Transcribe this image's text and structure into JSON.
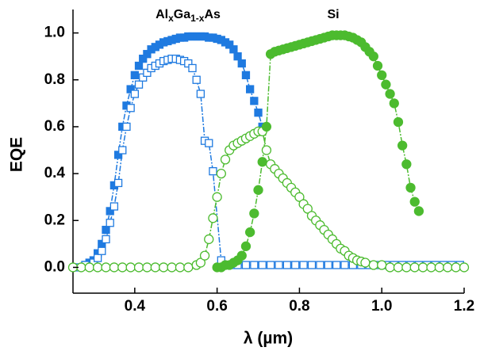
{
  "chart_data": {
    "type": "scatter",
    "xlabel": "λ (µm)",
    "ylabel": "EQE",
    "annotations": [
      {
        "parts": [
          "Al",
          "x",
          "Ga",
          "1-x",
          "As"
        ]
      },
      {
        "text": "Si"
      }
    ],
    "xlim": [
      0.25,
      1.2
    ],
    "ylim": [
      -0.11,
      1.1
    ],
    "xticks": [
      0.4,
      0.6,
      0.8,
      {
        "value": 1,
        "label": "1.0"
      },
      1.2
    ],
    "yticks": [
      {
        "value": 0,
        "label": "0.0"
      },
      0.2,
      0.4,
      0.6,
      0.8,
      {
        "value": 1,
        "label": "1.0"
      }
    ],
    "series": [
      {
        "color": "#1f7ae0",
        "marker": "square",
        "filled": true,
        "x": [
          0.28,
          0.29,
          0.3,
          0.31,
          0.32,
          0.33,
          0.34,
          0.35,
          0.36,
          0.37,
          0.38,
          0.39,
          0.4,
          0.41,
          0.42,
          0.43,
          0.44,
          0.45,
          0.46,
          0.47,
          0.48,
          0.49,
          0.5,
          0.51,
          0.52,
          0.53,
          0.54,
          0.55,
          0.56,
          0.57,
          0.58,
          0.59,
          0.6,
          0.61,
          0.62,
          0.63,
          0.64,
          0.65,
          0.66,
          0.67,
          0.68,
          0.69,
          0.7,
          0.71
        ],
        "values": [
          0.01,
          0.02,
          0.03,
          0.06,
          0.1,
          0.16,
          0.24,
          0.35,
          0.48,
          0.6,
          0.69,
          0.76,
          0.82,
          0.86,
          0.89,
          0.91,
          0.93,
          0.94,
          0.95,
          0.96,
          0.965,
          0.97,
          0.975,
          0.98,
          0.98,
          0.985,
          0.985,
          0.985,
          0.985,
          0.985,
          0.98,
          0.98,
          0.975,
          0.97,
          0.96,
          0.95,
          0.93,
          0.9,
          0.87,
          0.82,
          0.76,
          0.71,
          0.66,
          0.6
        ]
      },
      {
        "color": "#1f7ae0",
        "marker": "square",
        "filled": false,
        "x": [
          0.26,
          0.28,
          0.3,
          0.31,
          0.32,
          0.33,
          0.34,
          0.35,
          0.36,
          0.37,
          0.38,
          0.39,
          0.4,
          0.41,
          0.42,
          0.43,
          0.44,
          0.45,
          0.46,
          0.47,
          0.48,
          0.49,
          0.5,
          0.51,
          0.52,
          0.53,
          0.54,
          0.55,
          0.56,
          0.57,
          0.58,
          0.59,
          0.61,
          0.63,
          0.65,
          0.67,
          0.69,
          0.71,
          0.73,
          0.75,
          0.77,
          0.79,
          0.81,
          0.83,
          0.85,
          0.87,
          0.89,
          0.91,
          0.93,
          0.95,
          0.97,
          0.99,
          1.01,
          1.03,
          1.05,
          1.07,
          1.09,
          1.11,
          1.13,
          1.15,
          1.17,
          1.19
        ],
        "values": [
          0.0,
          0.01,
          0.02,
          0.04,
          0.07,
          0.12,
          0.19,
          0.26,
          0.36,
          0.5,
          0.6,
          0.68,
          0.74,
          0.78,
          0.81,
          0.83,
          0.85,
          0.86,
          0.87,
          0.88,
          0.885,
          0.89,
          0.89,
          0.885,
          0.88,
          0.87,
          0.85,
          0.8,
          0.74,
          0.54,
          0.53,
          0.41,
          0.03,
          0.01,
          0.01,
          0.01,
          0.01,
          0.01,
          0.01,
          0.01,
          0.01,
          0.01,
          0.01,
          0.01,
          0.01,
          0.01,
          0.01,
          0.01,
          0.01,
          0.01,
          0.01,
          0.01,
          0.01,
          0.01,
          0.01,
          0.01,
          0.01,
          0.01,
          0.01,
          0.01,
          0.01,
          0.01
        ]
      },
      {
        "color": "#4cbb2f",
        "marker": "circle",
        "filled": false,
        "x": [
          0.25,
          0.27,
          0.29,
          0.31,
          0.33,
          0.35,
          0.37,
          0.39,
          0.41,
          0.43,
          0.45,
          0.47,
          0.49,
          0.51,
          0.53,
          0.55,
          0.56,
          0.57,
          0.58,
          0.59,
          0.6,
          0.61,
          0.62,
          0.63,
          0.64,
          0.65,
          0.66,
          0.67,
          0.68,
          0.69,
          0.7,
          0.71,
          0.72,
          0.73,
          0.74,
          0.75,
          0.76,
          0.77,
          0.78,
          0.79,
          0.8,
          0.81,
          0.82,
          0.83,
          0.84,
          0.85,
          0.86,
          0.87,
          0.88,
          0.89,
          0.9,
          0.91,
          0.92,
          0.93,
          0.94,
          0.95,
          0.96,
          0.98,
          1.0,
          1.02,
          1.04,
          1.06,
          1.08,
          1.1,
          1.12,
          1.14,
          1.16,
          1.18,
          1.2
        ],
        "values": [
          0.0,
          0.0,
          0.0,
          0.0,
          0.0,
          0.0,
          0.0,
          0.0,
          0.0,
          0.0,
          0.0,
          0.0,
          0.0,
          0.0,
          0.0,
          0.01,
          0.02,
          0.05,
          0.12,
          0.21,
          0.3,
          0.4,
          0.46,
          0.5,
          0.52,
          0.53,
          0.54,
          0.55,
          0.56,
          0.57,
          0.58,
          0.58,
          0.5,
          0.44,
          0.42,
          0.4,
          0.38,
          0.36,
          0.34,
          0.32,
          0.3,
          0.27,
          0.25,
          0.22,
          0.2,
          0.18,
          0.16,
          0.14,
          0.12,
          0.1,
          0.08,
          0.07,
          0.05,
          0.04,
          0.03,
          0.025,
          0.02,
          0.01,
          0.01,
          0.0,
          0.0,
          0.0,
          0.0,
          0.0,
          0.0,
          0.0,
          0.0,
          0.0,
          0.0
        ]
      },
      {
        "color": "#4cbb2f",
        "marker": "circle",
        "filled": true,
        "x": [
          0.6,
          0.61,
          0.62,
          0.63,
          0.64,
          0.65,
          0.66,
          0.67,
          0.68,
          0.69,
          0.7,
          0.71,
          0.72,
          0.73,
          0.74,
          0.75,
          0.76,
          0.77,
          0.78,
          0.79,
          0.8,
          0.81,
          0.82,
          0.83,
          0.84,
          0.85,
          0.86,
          0.87,
          0.88,
          0.89,
          0.9,
          0.91,
          0.92,
          0.93,
          0.94,
          0.95,
          0.96,
          0.97,
          0.98,
          0.99,
          1.0,
          1.01,
          1.02,
          1.03,
          1.04,
          1.05,
          1.06,
          1.07,
          1.08,
          1.09
        ],
        "values": [
          0.0,
          0.0,
          0.01,
          0.01,
          0.02,
          0.03,
          0.05,
          0.09,
          0.15,
          0.23,
          0.33,
          0.45,
          0.6,
          0.91,
          0.92,
          0.925,
          0.93,
          0.935,
          0.94,
          0.945,
          0.95,
          0.955,
          0.96,
          0.965,
          0.97,
          0.975,
          0.98,
          0.985,
          0.99,
          0.99,
          0.99,
          0.99,
          0.985,
          0.98,
          0.97,
          0.96,
          0.94,
          0.92,
          0.9,
          0.86,
          0.82,
          0.78,
          0.74,
          0.7,
          0.62,
          0.52,
          0.44,
          0.34,
          0.28,
          0.24
        ]
      }
    ]
  }
}
